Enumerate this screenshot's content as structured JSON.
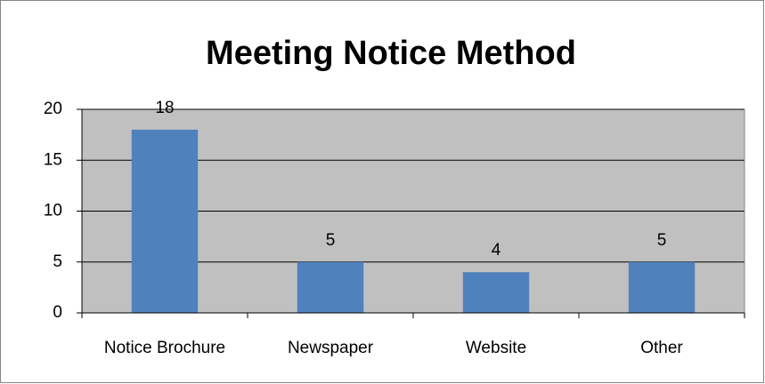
{
  "chart_data": {
    "type": "bar",
    "title": "Meeting Notice Method",
    "categories": [
      "Notice Brochure",
      "Newspaper",
      "Website",
      "Other"
    ],
    "values": [
      18,
      5,
      4,
      5
    ],
    "color": "#4f81bd",
    "ylim": [
      0,
      20
    ],
    "yticks": [
      0,
      5,
      10,
      15,
      20
    ],
    "grid": true
  }
}
